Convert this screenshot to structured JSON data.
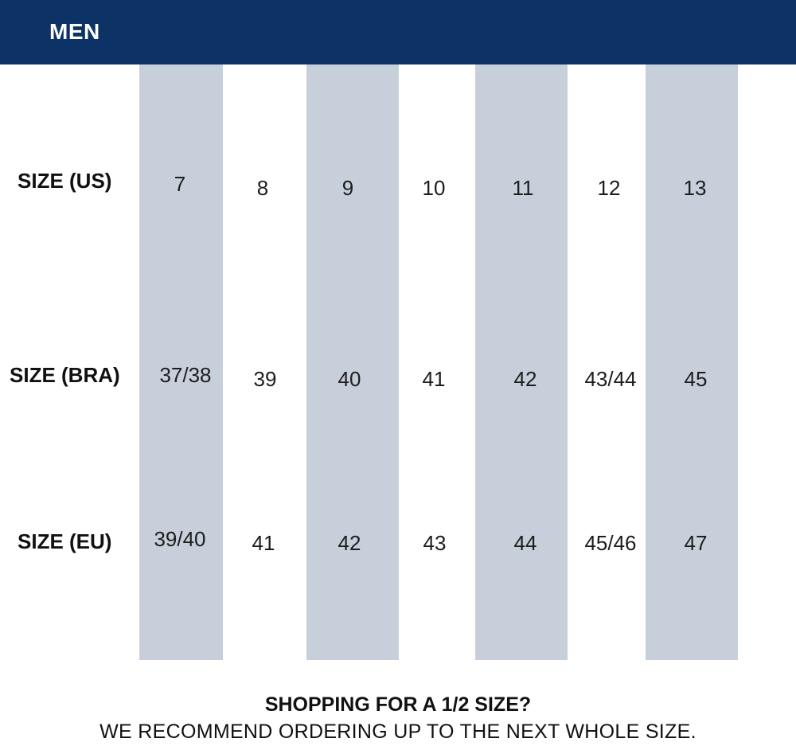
{
  "header": {
    "title": "MEN",
    "background_color": "#0d3366"
  },
  "table": {
    "stripe_color": "#c7d0da",
    "rows": [
      {
        "label": "SIZE (US)",
        "values": [
          "7",
          "8",
          "9",
          "10",
          "11",
          "12",
          "13"
        ]
      },
      {
        "label": "SIZE (BRA)",
        "values": [
          "37/38",
          "39",
          "40",
          "41",
          "42",
          "43/44",
          "45"
        ]
      },
      {
        "label": "SIZE (EU)",
        "values": [
          "39/40",
          "41",
          "42",
          "43",
          "44",
          "45/46",
          "47"
        ]
      }
    ]
  },
  "footer": {
    "heading": "SHOPPING FOR A 1/2 SIZE?",
    "note": "WE RECOMMEND ORDERING UP TO THE NEXT WHOLE SIZE."
  }
}
